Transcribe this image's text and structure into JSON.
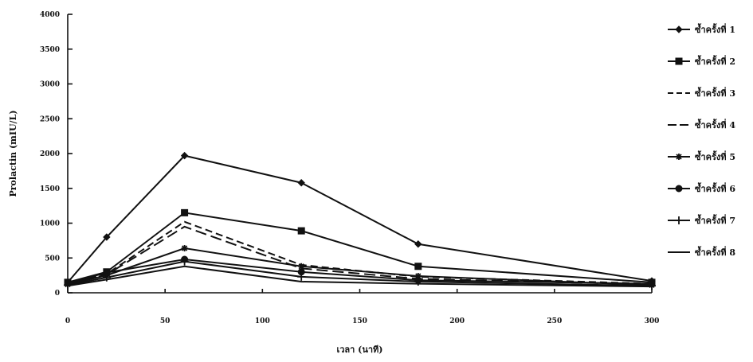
{
  "chart_data": {
    "type": "line",
    "xlabel": "เวลา (นาที)",
    "ylabel": "Prolactin (mIU/L)",
    "xlim": [
      0,
      300
    ],
    "ylim": [
      0,
      4000
    ],
    "xticks": [
      0,
      50,
      100,
      150,
      200,
      250,
      300
    ],
    "yticks": [
      0,
      500,
      1000,
      1500,
      2000,
      2500,
      3000,
      3500,
      4000
    ],
    "grid": false,
    "legend_position": "right",
    "x": [
      0,
      20,
      60,
      120,
      180,
      300
    ],
    "series": [
      {
        "name": "ซ้ำครั้งที่ 1",
        "marker": "diamond",
        "dash": "solid",
        "values": [
          150,
          800,
          1970,
          1580,
          700,
          170
        ]
      },
      {
        "name": "ซ้ำครั้งที่ 2",
        "marker": "square",
        "dash": "solid",
        "values": [
          150,
          300,
          1150,
          890,
          380,
          150
        ]
      },
      {
        "name": "ซ้ำครั้งที่ 3",
        "marker": "none",
        "dash": "dashed",
        "values": [
          130,
          270,
          1020,
          400,
          230,
          130
        ]
      },
      {
        "name": "ซ้ำครั้งที่ 4",
        "marker": "none",
        "dash": "longdash",
        "values": [
          130,
          260,
          950,
          350,
          200,
          120
        ]
      },
      {
        "name": "ซ้ำครั้งที่ 5",
        "marker": "star",
        "dash": "solid",
        "values": [
          120,
          250,
          640,
          380,
          240,
          110
        ]
      },
      {
        "name": "ซ้ำครั้งที่ 6",
        "marker": "circle",
        "dash": "solid",
        "values": [
          140,
          290,
          480,
          300,
          180,
          130
        ]
      },
      {
        "name": "ซ้ำครั้งที่ 7",
        "marker": "plus",
        "dash": "solid",
        "values": [
          110,
          220,
          450,
          230,
          160,
          100
        ]
      },
      {
        "name": "ซ้ำครั้งที่ 8",
        "marker": "none",
        "dash": "solid",
        "values": [
          100,
          190,
          380,
          160,
          130,
          90
        ]
      }
    ]
  }
}
